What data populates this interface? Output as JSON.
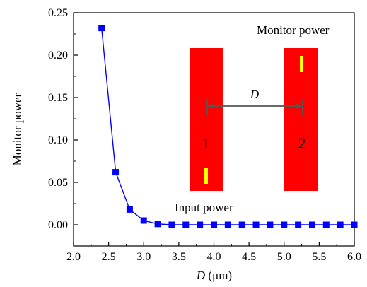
{
  "chart_data": {
    "type": "line",
    "title": "",
    "xlabel": "D",
    "xlabel_unit": "(μm)",
    "ylabel": "Monitor power",
    "xlim": [
      2.0,
      6.0
    ],
    "ylim": [
      -0.025,
      0.25
    ],
    "xticks": [
      "2.0",
      "2.5",
      "3.0",
      "3.5",
      "4.0",
      "4.5",
      "5.0",
      "5.5",
      "6.0"
    ],
    "yticks": [
      "0.00",
      "0.05",
      "0.10",
      "0.15",
      "0.20",
      "0.25"
    ],
    "grid": false,
    "series": [
      {
        "x": [
          2.4,
          2.6,
          2.8,
          3.0,
          3.2,
          3.4,
          3.6,
          3.8,
          4.0,
          4.2,
          4.4,
          4.6,
          4.8,
          5.0,
          5.2,
          5.4,
          5.6,
          5.8,
          6.0
        ],
        "y": [
          0.232,
          0.062,
          0.018,
          0.005,
          0.001,
          0.0,
          0.0,
          0.0,
          0.0,
          0.0,
          0.0,
          0.0,
          0.0,
          0.0,
          0.0,
          0.0,
          0.0,
          0.0,
          0.0
        ],
        "color": "#0000ff",
        "marker": "square"
      }
    ],
    "annotations": {
      "monitor_power": "Monitor power",
      "input_power": "Input power",
      "waveguide_1": "1",
      "waveguide_2": "2",
      "distance": "D"
    },
    "colors": {
      "waveguide": "#ff0000",
      "source": "#ffff00",
      "arrow": "#555555"
    }
  }
}
